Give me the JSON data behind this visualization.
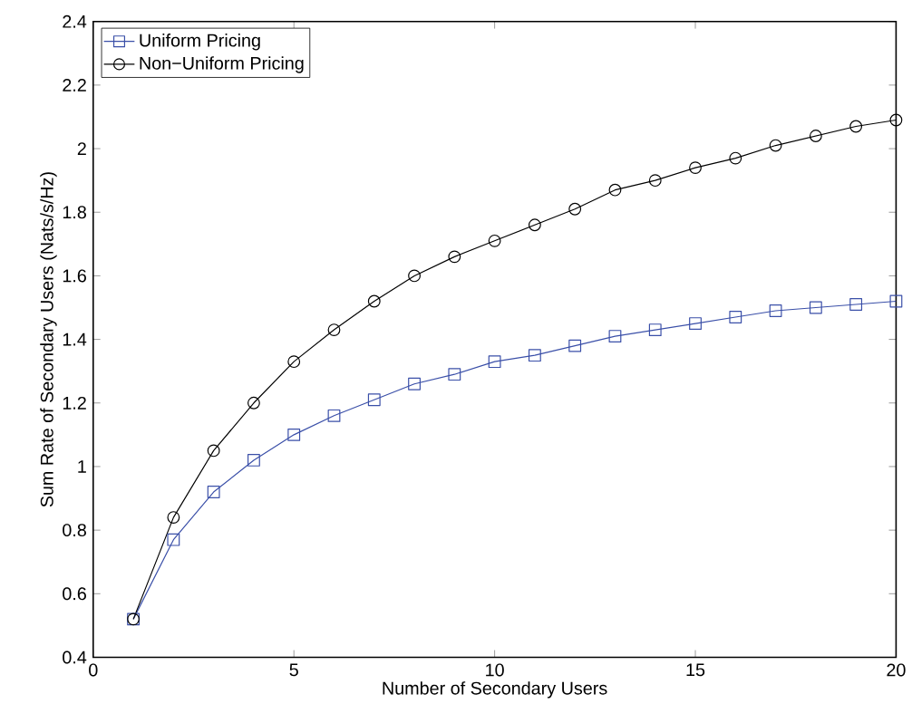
{
  "chart_data": {
    "type": "line",
    "xlabel": "Number of Secondary Users",
    "ylabel": "Sum Rate of Secondary Users (Nats/s/Hz)",
    "x": [
      1,
      2,
      3,
      4,
      5,
      6,
      7,
      8,
      9,
      10,
      11,
      12,
      13,
      14,
      15,
      16,
      17,
      18,
      19,
      20
    ],
    "series": [
      {
        "name": "Uniform Pricing",
        "color": "#3a4fa8",
        "marker": "square",
        "values": [
          0.52,
          0.77,
          0.92,
          1.02,
          1.1,
          1.16,
          1.21,
          1.26,
          1.29,
          1.33,
          1.35,
          1.38,
          1.41,
          1.43,
          1.45,
          1.47,
          1.49,
          1.5,
          1.51,
          1.52
        ]
      },
      {
        "name": "Non−Uniform Pricing",
        "color": "#000000",
        "marker": "circle",
        "values": [
          0.52,
          0.84,
          1.05,
          1.2,
          1.33,
          1.43,
          1.52,
          1.6,
          1.66,
          1.71,
          1.76,
          1.81,
          1.87,
          1.9,
          1.94,
          1.97,
          2.01,
          2.04,
          2.07,
          2.09
        ]
      }
    ],
    "xlim": [
      0,
      20
    ],
    "xticks": [
      0,
      5,
      10,
      15,
      20
    ],
    "ylim": [
      0.4,
      2.4
    ],
    "yticks": [
      0.4,
      0.6,
      0.8,
      1,
      1.2,
      1.4,
      1.6,
      1.8,
      2,
      2.2,
      2.4
    ],
    "legend": "top left",
    "grid": false,
    "line_style": "solid"
  }
}
